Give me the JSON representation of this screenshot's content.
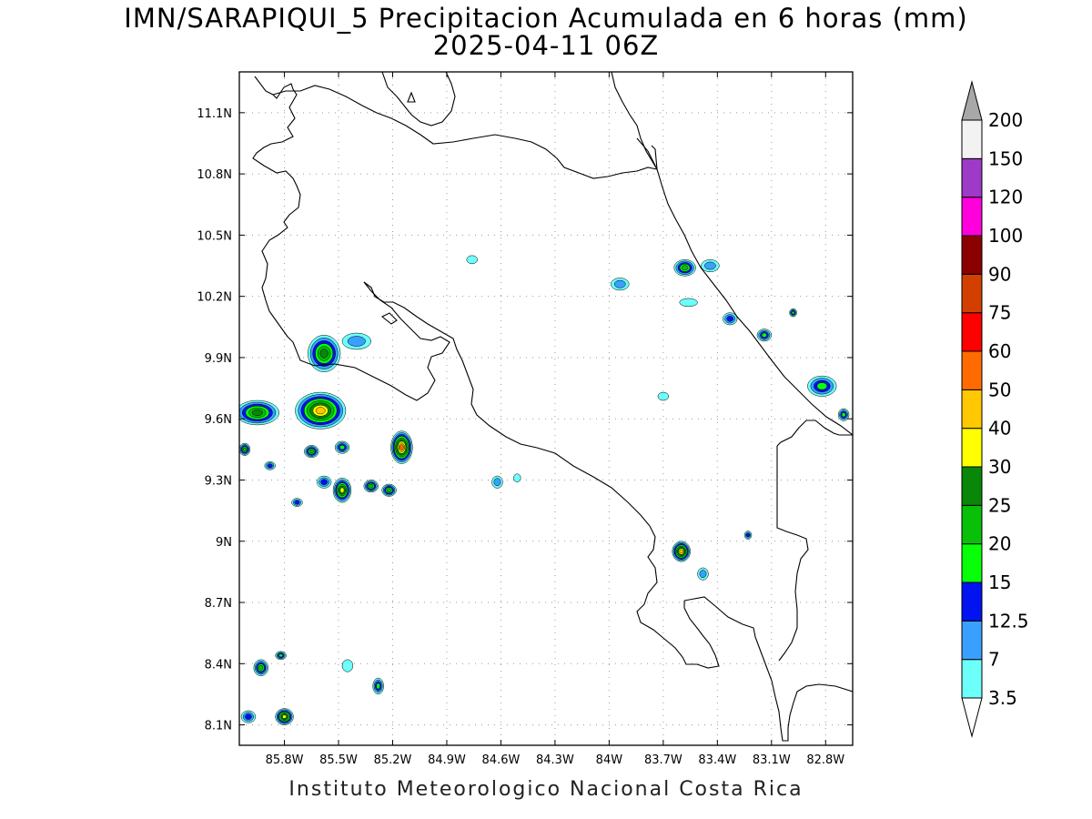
{
  "title": {
    "line1": "IMN/SARAPIQUI_5 Precipitacion Acumulada en 6 horas (mm)",
    "line2": "2025-04-11 06Z"
  },
  "footer": "Instituto Meteorologico Nacional Costa Rica",
  "map": {
    "lon_range": [
      -86.05,
      -82.65
    ],
    "lat_range": [
      8.0,
      11.3
    ],
    "lon_ticks": [
      {
        "value": -85.8,
        "label": "85.8W"
      },
      {
        "value": -85.5,
        "label": "85.5W"
      },
      {
        "value": -85.2,
        "label": "85.2W"
      },
      {
        "value": -84.9,
        "label": "84.9W"
      },
      {
        "value": -84.6,
        "label": "84.6W"
      },
      {
        "value": -84.3,
        "label": "84.3W"
      },
      {
        "value": -84.0,
        "label": "84W"
      },
      {
        "value": -83.7,
        "label": "83.7W"
      },
      {
        "value": -83.4,
        "label": "83.4W"
      },
      {
        "value": -83.1,
        "label": "83.1W"
      },
      {
        "value": -82.8,
        "label": "82.8W"
      }
    ],
    "lat_ticks": [
      {
        "value": 8.1,
        "label": "8.1N"
      },
      {
        "value": 8.4,
        "label": "8.4N"
      },
      {
        "value": 8.7,
        "label": "8.7N"
      },
      {
        "value": 9.0,
        "label": "9N"
      },
      {
        "value": 9.3,
        "label": "9.3N"
      },
      {
        "value": 9.6,
        "label": "9.6N"
      },
      {
        "value": 9.9,
        "label": "9.9N"
      },
      {
        "value": 10.2,
        "label": "10.2N"
      },
      {
        "value": 10.5,
        "label": "10.5N"
      },
      {
        "value": 10.8,
        "label": "10.8N"
      },
      {
        "value": 11.1,
        "label": "11.1N"
      }
    ],
    "grid": true
  },
  "colorbar": {
    "levels": [
      "3.5",
      "7",
      "12.5",
      "15",
      "20",
      "25",
      "30",
      "40",
      "50",
      "60",
      "75",
      "90",
      "100",
      "120",
      "150",
      "200"
    ],
    "colors": [
      "#6dfff9",
      "#3aa0ff",
      "#0013f0",
      "#08ff08",
      "#09c009",
      "#098709",
      "#ffff00",
      "#ffc800",
      "#ff6b00",
      "#ff0000",
      "#d23f00",
      "#8b0000",
      "#ff00dc",
      "#9d3ac8",
      "#f2f2f2",
      "#a8a8a8"
    ],
    "below_color": "#ffffff",
    "above_color": "#a8a8a8"
  },
  "precip_cells": [
    {
      "lon": -85.95,
      "lat": 9.63,
      "rx": 0.12,
      "ry": 0.06,
      "level": 5
    },
    {
      "lon": -85.6,
      "lat": 9.64,
      "rx": 0.14,
      "ry": 0.09,
      "level": 7
    },
    {
      "lon": -85.58,
      "lat": 9.92,
      "rx": 0.09,
      "ry": 0.09,
      "level": 5
    },
    {
      "lon": -85.4,
      "lat": 9.98,
      "rx": 0.08,
      "ry": 0.04,
      "level": 1
    },
    {
      "lon": -85.15,
      "lat": 9.46,
      "rx": 0.06,
      "ry": 0.08,
      "level": 8
    },
    {
      "lon": -85.48,
      "lat": 9.25,
      "rx": 0.05,
      "ry": 0.06,
      "level": 6
    },
    {
      "lon": -85.32,
      "lat": 9.27,
      "rx": 0.04,
      "ry": 0.03,
      "level": 4
    },
    {
      "lon": -85.22,
      "lat": 9.25,
      "rx": 0.04,
      "ry": 0.03,
      "level": 4
    },
    {
      "lon": -85.65,
      "lat": 9.44,
      "rx": 0.04,
      "ry": 0.03,
      "level": 4
    },
    {
      "lon": -85.48,
      "lat": 9.46,
      "rx": 0.04,
      "ry": 0.03,
      "level": 3
    },
    {
      "lon": -86.02,
      "lat": 9.45,
      "rx": 0.03,
      "ry": 0.03,
      "level": 4
    },
    {
      "lon": -85.88,
      "lat": 9.37,
      "rx": 0.03,
      "ry": 0.02,
      "level": 2
    },
    {
      "lon": -85.58,
      "lat": 9.29,
      "rx": 0.04,
      "ry": 0.03,
      "level": 2
    },
    {
      "lon": -85.73,
      "lat": 9.19,
      "rx": 0.03,
      "ry": 0.02,
      "level": 2
    },
    {
      "lon": -84.62,
      "lat": 9.29,
      "rx": 0.03,
      "ry": 0.03,
      "level": 1
    },
    {
      "lon": -84.76,
      "lat": 10.38,
      "rx": 0.03,
      "ry": 0.02,
      "level": 0
    },
    {
      "lon": -83.94,
      "lat": 10.26,
      "rx": 0.05,
      "ry": 0.03,
      "level": 1
    },
    {
      "lon": -83.58,
      "lat": 10.34,
      "rx": 0.06,
      "ry": 0.04,
      "level": 4
    },
    {
      "lon": -83.44,
      "lat": 10.35,
      "rx": 0.05,
      "ry": 0.03,
      "level": 1
    },
    {
      "lon": -83.56,
      "lat": 10.17,
      "rx": 0.05,
      "ry": 0.02,
      "level": 0
    },
    {
      "lon": -83.33,
      "lat": 10.09,
      "rx": 0.04,
      "ry": 0.03,
      "level": 2
    },
    {
      "lon": -83.14,
      "lat": 10.01,
      "rx": 0.04,
      "ry": 0.03,
      "level": 3
    },
    {
      "lon": -82.98,
      "lat": 10.12,
      "rx": 0.02,
      "ry": 0.02,
      "level": 3
    },
    {
      "lon": -82.82,
      "lat": 9.76,
      "rx": 0.08,
      "ry": 0.05,
      "level": 3
    },
    {
      "lon": -82.7,
      "lat": 9.62,
      "rx": 0.03,
      "ry": 0.03,
      "level": 3
    },
    {
      "lon": -83.6,
      "lat": 8.95,
      "rx": 0.05,
      "ry": 0.05,
      "level": 7
    },
    {
      "lon": -83.23,
      "lat": 9.03,
      "rx": 0.02,
      "ry": 0.02,
      "level": 2
    },
    {
      "lon": -83.48,
      "lat": 8.84,
      "rx": 0.03,
      "ry": 0.03,
      "level": 1
    },
    {
      "lon": -85.93,
      "lat": 8.38,
      "rx": 0.04,
      "ry": 0.04,
      "level": 4
    },
    {
      "lon": -85.82,
      "lat": 8.44,
      "rx": 0.03,
      "ry": 0.02,
      "level": 3
    },
    {
      "lon": -85.28,
      "lat": 8.29,
      "rx": 0.03,
      "ry": 0.04,
      "level": 3
    },
    {
      "lon": -85.8,
      "lat": 8.14,
      "rx": 0.05,
      "ry": 0.04,
      "level": 6
    },
    {
      "lon": -86.0,
      "lat": 8.14,
      "rx": 0.04,
      "ry": 0.03,
      "level": 2
    },
    {
      "lon": -85.45,
      "lat": 8.39,
      "rx": 0.03,
      "ry": 0.03,
      "level": 0
    },
    {
      "lon": -84.51,
      "lat": 9.31,
      "rx": 0.02,
      "ry": 0.02,
      "level": 0
    },
    {
      "lon": -83.7,
      "lat": 9.71,
      "rx": 0.03,
      "ry": 0.02,
      "level": 0
    }
  ]
}
